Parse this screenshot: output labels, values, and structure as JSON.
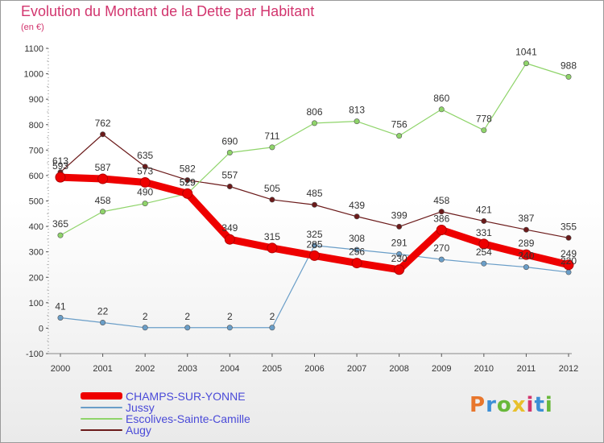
{
  "header": {
    "title": "Evolution du Montant de la Dette par Habitant",
    "subtitle": "(en €)"
  },
  "logo": {
    "text": "Proxiti",
    "colors": [
      "#e8762c",
      "#3c8fd6",
      "#68b83a",
      "#e8c02c",
      "#d2356e",
      "#3c8fd6",
      "#68b83a"
    ]
  },
  "chart_data": {
    "type": "line",
    "title": "Evolution du Montant de la Dette par Habitant",
    "subtitle": "(en €)",
    "xlabel": "",
    "ylabel": "",
    "ylim": [
      -100,
      1100
    ],
    "yticks": [
      -100,
      0,
      100,
      200,
      300,
      400,
      500,
      600,
      700,
      800,
      900,
      1000,
      1100
    ],
    "grid": false,
    "legend_position": "bottom-left",
    "x": [
      2000,
      2001,
      2002,
      2003,
      2004,
      2005,
      2006,
      2007,
      2008,
      2009,
      2010,
      2011,
      2012
    ],
    "series": [
      {
        "name": "Augy",
        "color": "#6b1a1a",
        "values": [
          613,
          762,
          635,
          582,
          557,
          505,
          485,
          439,
          399,
          458,
          421,
          387,
          355
        ]
      },
      {
        "name": "Escolives-Sainte-Camille",
        "color": "#8fd46a",
        "values": [
          365,
          458,
          490,
          529,
          690,
          711,
          806,
          813,
          756,
          860,
          778,
          1041,
          988
        ]
      },
      {
        "name": "Jussy",
        "color": "#6a9ec8",
        "values": [
          41,
          22,
          2,
          2,
          2,
          2,
          325,
          308,
          291,
          270,
          254,
          240,
          220
        ]
      },
      {
        "name": "CHAMPS-SUR-YONNE",
        "color": "#ee0000",
        "values": [
          593,
          587,
          573,
          529,
          349,
          315,
          285,
          256,
          230,
          386,
          331,
          289,
          249
        ]
      }
    ]
  }
}
